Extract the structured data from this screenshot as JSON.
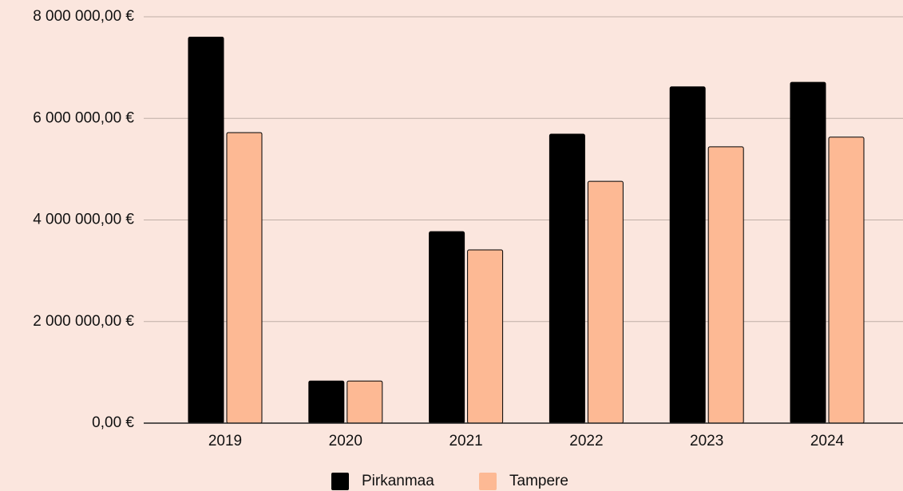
{
  "chart_data": {
    "type": "bar",
    "categories": [
      "2019",
      "2020",
      "2021",
      "2022",
      "2023",
      "2024"
    ],
    "series": [
      {
        "name": "Pirkanmaa",
        "color": "#000000",
        "values": [
          7600000,
          830000,
          3770000,
          5690000,
          6620000,
          6710000
        ]
      },
      {
        "name": "Tampere",
        "color": "#fdb994",
        "values": [
          5720000,
          830000,
          3410000,
          4760000,
          5440000,
          5630000
        ]
      }
    ],
    "ylim": [
      0,
      8000000
    ],
    "yticks": [
      {
        "value": 0,
        "label": "0,00 €"
      },
      {
        "value": 2000000,
        "label": "2 000 000,00 €"
      },
      {
        "value": 4000000,
        "label": "4 000 000,00 €"
      },
      {
        "value": 6000000,
        "label": "6 000 000,00 €"
      },
      {
        "value": 8000000,
        "label": "8 000 000,00 €"
      }
    ],
    "grid": true,
    "legend": "bottom"
  }
}
